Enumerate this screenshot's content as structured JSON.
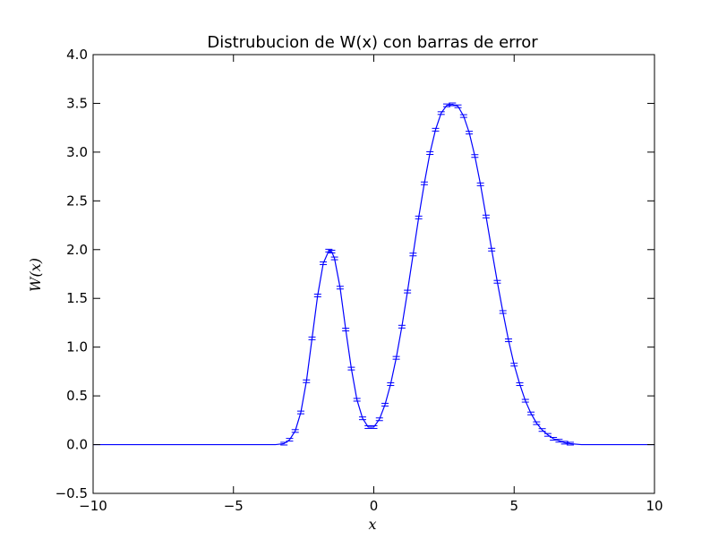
{
  "chart_data": {
    "type": "line",
    "title": "Distrubucion de W(x) con barras de error",
    "xlabel": "x",
    "ylabel": "W(x)",
    "xlim": [
      -10,
      10
    ],
    "ylim": [
      -0.5,
      4.0
    ],
    "xticks": [
      -10,
      -5,
      0,
      5,
      10
    ],
    "yticks": [
      -0.5,
      0.0,
      0.5,
      1.0,
      1.5,
      2.0,
      2.5,
      3.0,
      3.5,
      4.0
    ],
    "xtick_labels": [
      "−10",
      "−5",
      "0",
      "5",
      "10"
    ],
    "ytick_labels": [
      "−0.5",
      "0.0",
      "0.5",
      "1.0",
      "1.5",
      "2.0",
      "2.5",
      "3.0",
      "3.5",
      "4.0"
    ],
    "grid": false,
    "legend": "none",
    "line_color": "#0000ff",
    "series": [
      {
        "x": [
          -10.0,
          -9.0,
          -8.0,
          -7.0,
          -6.0,
          -5.0,
          -4.0,
          -3.5,
          -3.2,
          -3.0,
          -2.8,
          -2.6,
          -2.4,
          -2.2,
          -2.0,
          -1.8,
          -1.6,
          -1.5,
          -1.4,
          -1.2,
          -1.0,
          -0.8,
          -0.6,
          -0.4,
          -0.2,
          0.0,
          0.2,
          0.4,
          0.6,
          0.8,
          1.0,
          1.2,
          1.4,
          1.6,
          1.8,
          2.0,
          2.2,
          2.4,
          2.6,
          2.8,
          3.0,
          3.2,
          3.4,
          3.6,
          3.8,
          4.0,
          4.2,
          4.4,
          4.6,
          4.8,
          5.0,
          5.2,
          5.4,
          5.6,
          5.8,
          6.0,
          6.2,
          6.4,
          6.6,
          6.8,
          7.0,
          7.4,
          7.8,
          8.2,
          9.0,
          10.0
        ],
        "y": [
          0.0,
          0.0,
          0.0,
          0.0,
          0.0,
          0.0,
          0.0,
          0.0,
          0.01,
          0.05,
          0.14,
          0.33,
          0.65,
          1.09,
          1.53,
          1.86,
          1.99,
          1.98,
          1.91,
          1.61,
          1.18,
          0.78,
          0.46,
          0.27,
          0.18,
          0.18,
          0.26,
          0.41,
          0.62,
          0.89,
          1.21,
          1.57,
          1.95,
          2.33,
          2.68,
          2.99,
          3.23,
          3.4,
          3.48,
          3.49,
          3.47,
          3.37,
          3.2,
          2.96,
          2.67,
          2.34,
          2.0,
          1.67,
          1.36,
          1.07,
          0.82,
          0.62,
          0.45,
          0.32,
          0.22,
          0.15,
          0.1,
          0.06,
          0.04,
          0.02,
          0.01,
          0.0,
          0.0,
          0.0,
          0.0,
          0.0
        ]
      }
    ]
  }
}
